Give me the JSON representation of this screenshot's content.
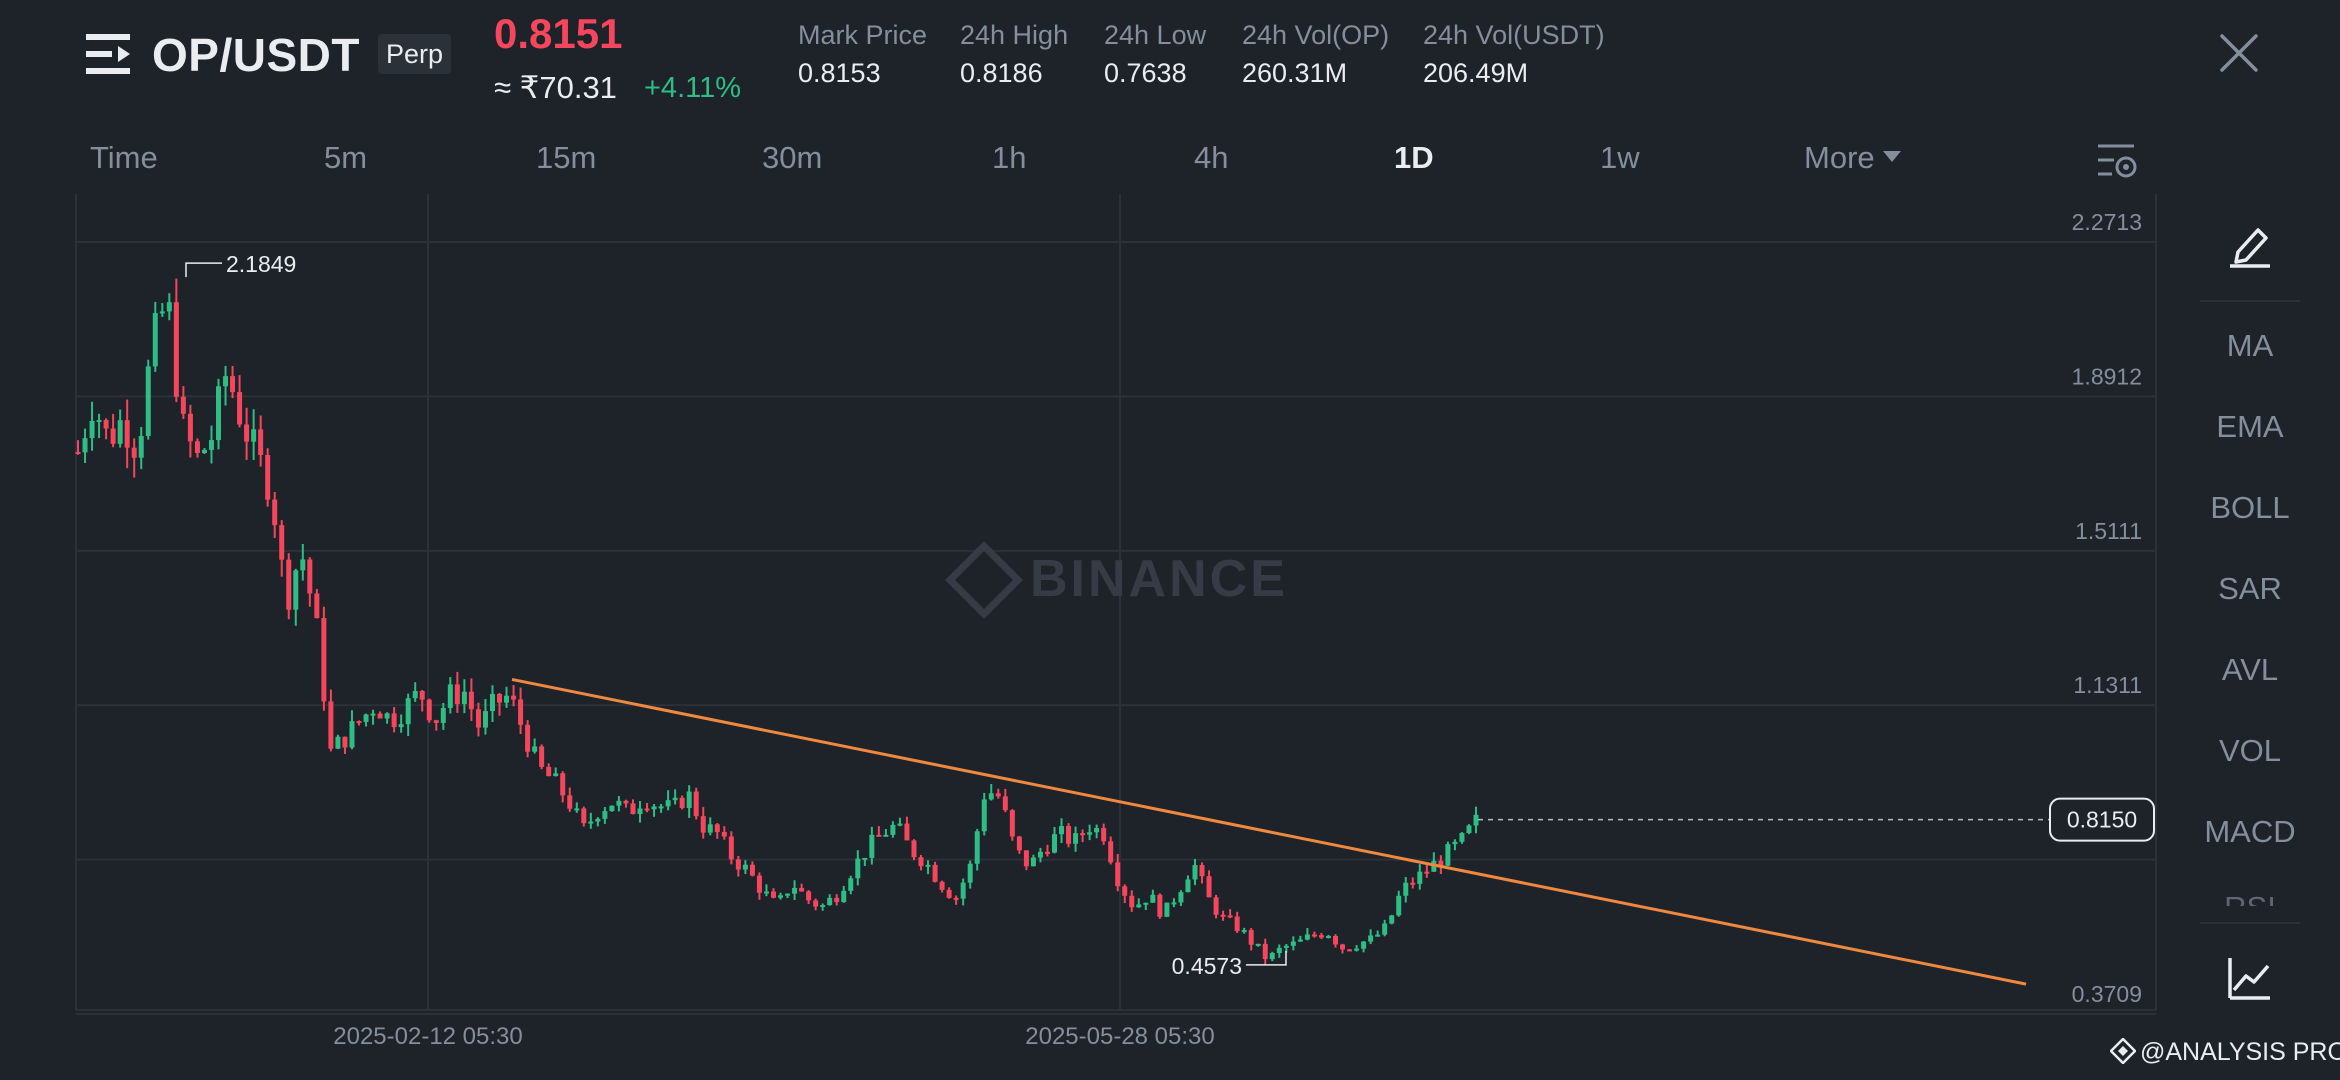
{
  "header": {
    "pair": "OP/USDT",
    "badge": "Perp",
    "last_price": "0.8151",
    "inr_price": "≈ ₹70.31",
    "change_pct": "+4.11%",
    "stats": [
      {
        "label": "Mark Price",
        "value": "0.8153"
      },
      {
        "label": "24h High",
        "value": "0.8186"
      },
      {
        "label": "24h Low",
        "value": "0.7638"
      },
      {
        "label": "24h Vol(OP)",
        "value": "260.31M"
      },
      {
        "label": "24h Vol(USDT)",
        "value": "206.49M"
      }
    ]
  },
  "tabs": [
    {
      "label": "Time",
      "active": false
    },
    {
      "label": "5m",
      "active": false
    },
    {
      "label": "15m",
      "active": false
    },
    {
      "label": "30m",
      "active": false
    },
    {
      "label": "1h",
      "active": false
    },
    {
      "label": "4h",
      "active": false
    },
    {
      "label": "1D",
      "active": true
    },
    {
      "label": "1w",
      "active": false
    },
    {
      "label": "More",
      "active": false
    }
  ],
  "indicators": [
    "MA",
    "EMA",
    "BOLL",
    "SAR",
    "AVL",
    "VOL",
    "MACD",
    "RSI"
  ],
  "footer": {
    "watermark": "@ANALYSIS PRO"
  },
  "chart_data": {
    "type": "candlestick",
    "watermark": "BINANCE",
    "y_axis_labels": [
      "2.2713",
      "1.8912",
      "1.5111",
      "1.1311",
      "0.3709"
    ],
    "ylim": [
      0.3709,
      2.2713
    ],
    "x_axis_labels": [
      "2025-02-12 05:30",
      "2025-05-28 05:30"
    ],
    "annotations": {
      "max_label": "2.1849",
      "min_label": "0.4573",
      "current_price_tag": "0.8150"
    },
    "trendline": {
      "from_price": 1.16,
      "to_price": 0.41,
      "color": "#f0883e"
    },
    "colors": {
      "up": "#2ebd85",
      "down": "#f6465d",
      "grid": "#2b3139",
      "axis_text": "#848e9c"
    },
    "close_path": [
      1.72,
      1.85,
      1.75,
      1.8,
      1.73,
      1.98,
      2.1,
      1.78,
      1.7,
      1.76,
      1.92,
      1.8,
      1.71,
      1.63,
      1.35,
      1.48,
      1.3,
      0.98,
      1.02,
      1.06,
      1.1,
      1.06,
      1.09,
      1.13,
      1.06,
      1.12,
      1.13,
      1.04,
      1.1,
      1.12,
      1.03,
      0.94,
      0.91,
      0.86,
      0.79,
      0.84,
      0.86,
      0.83,
      0.87,
      0.85,
      0.84,
      0.88,
      0.8,
      0.78,
      0.72,
      0.69,
      0.64,
      0.6,
      0.66,
      0.62,
      0.6,
      0.63,
      0.69,
      0.74,
      0.78,
      0.8,
      0.74,
      0.71,
      0.66,
      0.62,
      0.7,
      0.89,
      0.87,
      0.74,
      0.7,
      0.75,
      0.78,
      0.76,
      0.8,
      0.78,
      0.66,
      0.6,
      0.63,
      0.58,
      0.64,
      0.71,
      0.62,
      0.57,
      0.55,
      0.51,
      0.47,
      0.5,
      0.51,
      0.53,
      0.54,
      0.5,
      0.51,
      0.52,
      0.55,
      0.64,
      0.67,
      0.7,
      0.73,
      0.76,
      0.81
    ]
  }
}
